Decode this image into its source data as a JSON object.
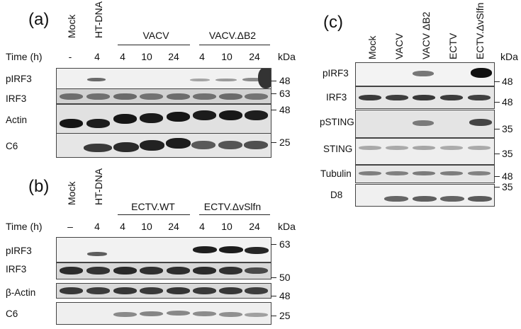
{
  "panel_a": {
    "label": "(a)",
    "lanes": [
      "Mock",
      "HT-DNA"
    ],
    "groups": [
      "VACV",
      "VACV.ΔB2"
    ],
    "time_label": "Time (h)",
    "times": [
      "-",
      "4",
      "4",
      "10",
      "24",
      "4",
      "10",
      "24"
    ],
    "kda_label": "kDa",
    "rows": [
      "pIRF3",
      "IRF3",
      "Actin",
      "C6"
    ],
    "markers": [
      "48",
      "63",
      "48",
      "25"
    ]
  },
  "panel_b": {
    "label": "(b)",
    "lanes": [
      "Mock",
      "HT-DNA"
    ],
    "groups": [
      "ECTV.WT",
      "ECTV.ΔvSlfn"
    ],
    "time_label": "Time (h)",
    "times": [
      "–",
      "4",
      "4",
      "10",
      "24",
      "4",
      "10",
      "24"
    ],
    "kda_label": "kDa",
    "rows": [
      "pIRF3",
      "IRF3",
      "β-Actin",
      "C6"
    ],
    "markers": [
      "63",
      "50",
      "48",
      "25"
    ]
  },
  "panel_c": {
    "label": "(c)",
    "lanes": [
      "Mock",
      "VACV",
      "VACV ΔB2",
      "ECTV",
      "ECTV.ΔvSlfn"
    ],
    "kda_label": "kDa",
    "rows": [
      "pIRF3",
      "IRF3",
      "pSTING",
      "STING",
      "Tubulin",
      "D8"
    ],
    "markers": [
      "48",
      "48",
      "35",
      "35",
      "48",
      "35"
    ]
  }
}
